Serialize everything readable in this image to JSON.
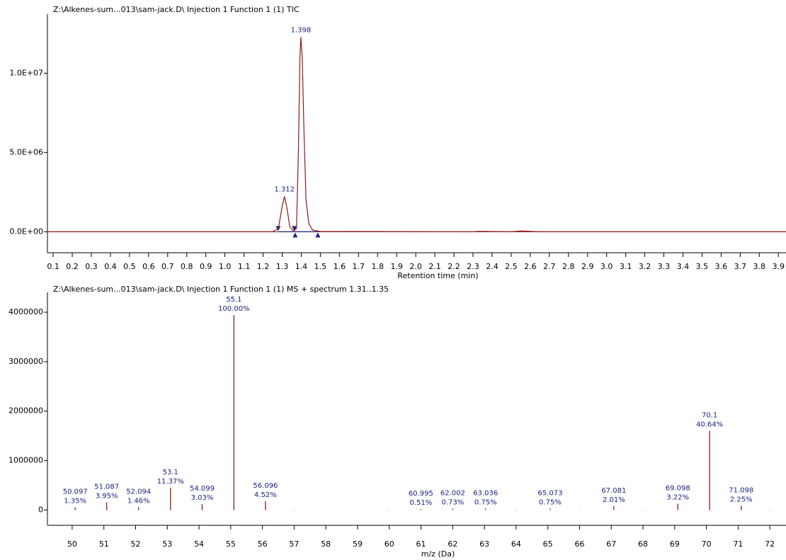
{
  "chart_data": [
    {
      "type": "line",
      "title": "Z:\\Alkenes-sum...013\\sam-jack.D\\ Injection 1 Function 1 (1) TIC",
      "x_label": "Retention time (min)",
      "color": "#8b1a1a",
      "marker_color": "#1a237e",
      "xlim": [
        0.07,
        3.94
      ],
      "ylim": [
        -1100000,
        13500000
      ],
      "xticks": [
        0.1,
        0.2,
        0.3,
        0.4,
        0.5,
        0.6,
        0.7,
        0.8,
        0.9,
        {
          "value": 1,
          "label": "1.0"
        },
        1.1,
        1.2,
        1.3,
        1.4,
        1.5,
        1.6,
        1.7,
        1.8,
        1.9,
        {
          "value": 2,
          "label": "2.0"
        },
        2.1,
        2.2,
        2.3,
        2.4,
        2.5,
        2.6,
        2.7,
        2.8,
        2.9,
        {
          "value": 3,
          "label": "3.0"
        },
        3.1,
        3.2,
        3.3,
        3.4,
        3.5,
        3.6,
        3.7,
        3.8,
        3.9
      ],
      "yticks": [
        {
          "value": 0,
          "label": "0.0E+00"
        },
        {
          "value": 5000000,
          "label": "5.0E+06"
        },
        {
          "value": 10000000,
          "label": "1.0E+07"
        }
      ],
      "x": [
        0.07,
        1.25,
        1.28,
        1.3,
        1.312,
        1.325,
        1.34,
        1.36,
        1.375,
        1.385,
        1.393,
        1.398,
        1.405,
        1.415,
        1.425,
        1.44,
        1.46,
        1.5,
        2.3,
        2.33,
        2.5,
        2.55,
        2.6,
        2.65,
        3.94
      ],
      "values": [
        0,
        0,
        200000,
        1600000,
        2230000,
        1500000,
        300000,
        50000,
        200000,
        5000000,
        11000000,
        12280000,
        11000000,
        6000000,
        2000000,
        500000,
        100000,
        20000,
        0,
        30000,
        0,
        50000,
        30000,
        0,
        0
      ],
      "peaks": [
        {
          "x": 1.312,
          "y": 2230000
        },
        {
          "x": 1.398,
          "y": 12280000
        }
      ],
      "integration": [
        {
          "start": 1.279,
          "end": 1.368
        },
        {
          "start": 1.364,
          "end": 1.487
        }
      ]
    },
    {
      "type": "stick",
      "title": "Z:\\Alkenes-sum...013\\sam-jack.D\\ Injection 1 Function 1 (1) MS + spectrum 1.31..1.35",
      "x_label": "m/z (Da)",
      "color": "#8b1a1a",
      "label_color": "#1a237e",
      "xlim": [
        49.22,
        72.51
      ],
      "ylim": [
        -280000,
        4330000
      ],
      "xticks": [
        50,
        51,
        52,
        53,
        54,
        55,
        56,
        57,
        58,
        59,
        60,
        61,
        62,
        63,
        64,
        65,
        66,
        67,
        68,
        69,
        70,
        71,
        72
      ],
      "yticks": [
        0,
        1000000,
        2000000,
        3000000,
        4000000
      ],
      "x": [
        50.097,
        51.087,
        52.094,
        53.1,
        54.099,
        55.1,
        56.096,
        57.0,
        59.95,
        60.995,
        62.002,
        63.036,
        64.0,
        65.073,
        66.0,
        67.081,
        68.0,
        69.098,
        70.1,
        71.098,
        72.0
      ],
      "values": [
        53190,
        155630,
        57524,
        447978,
        119382,
        3940000,
        178088,
        5000,
        5000,
        20094,
        28762,
        29550,
        5000,
        29550,
        5000,
        79194,
        5000,
        126868,
        1601216,
        88650,
        5000
      ],
      "percent_labels": [
        "1.35%",
        "3.95%",
        "1.46%",
        "11.37%",
        "3.03%",
        "100.00%",
        "4.52%",
        null,
        null,
        "0.51%",
        "0.73%",
        "0.75%",
        null,
        "0.75%",
        null,
        "2.01%",
        null,
        "3.22%",
        "40.64%",
        "2.25%",
        null
      ]
    }
  ]
}
